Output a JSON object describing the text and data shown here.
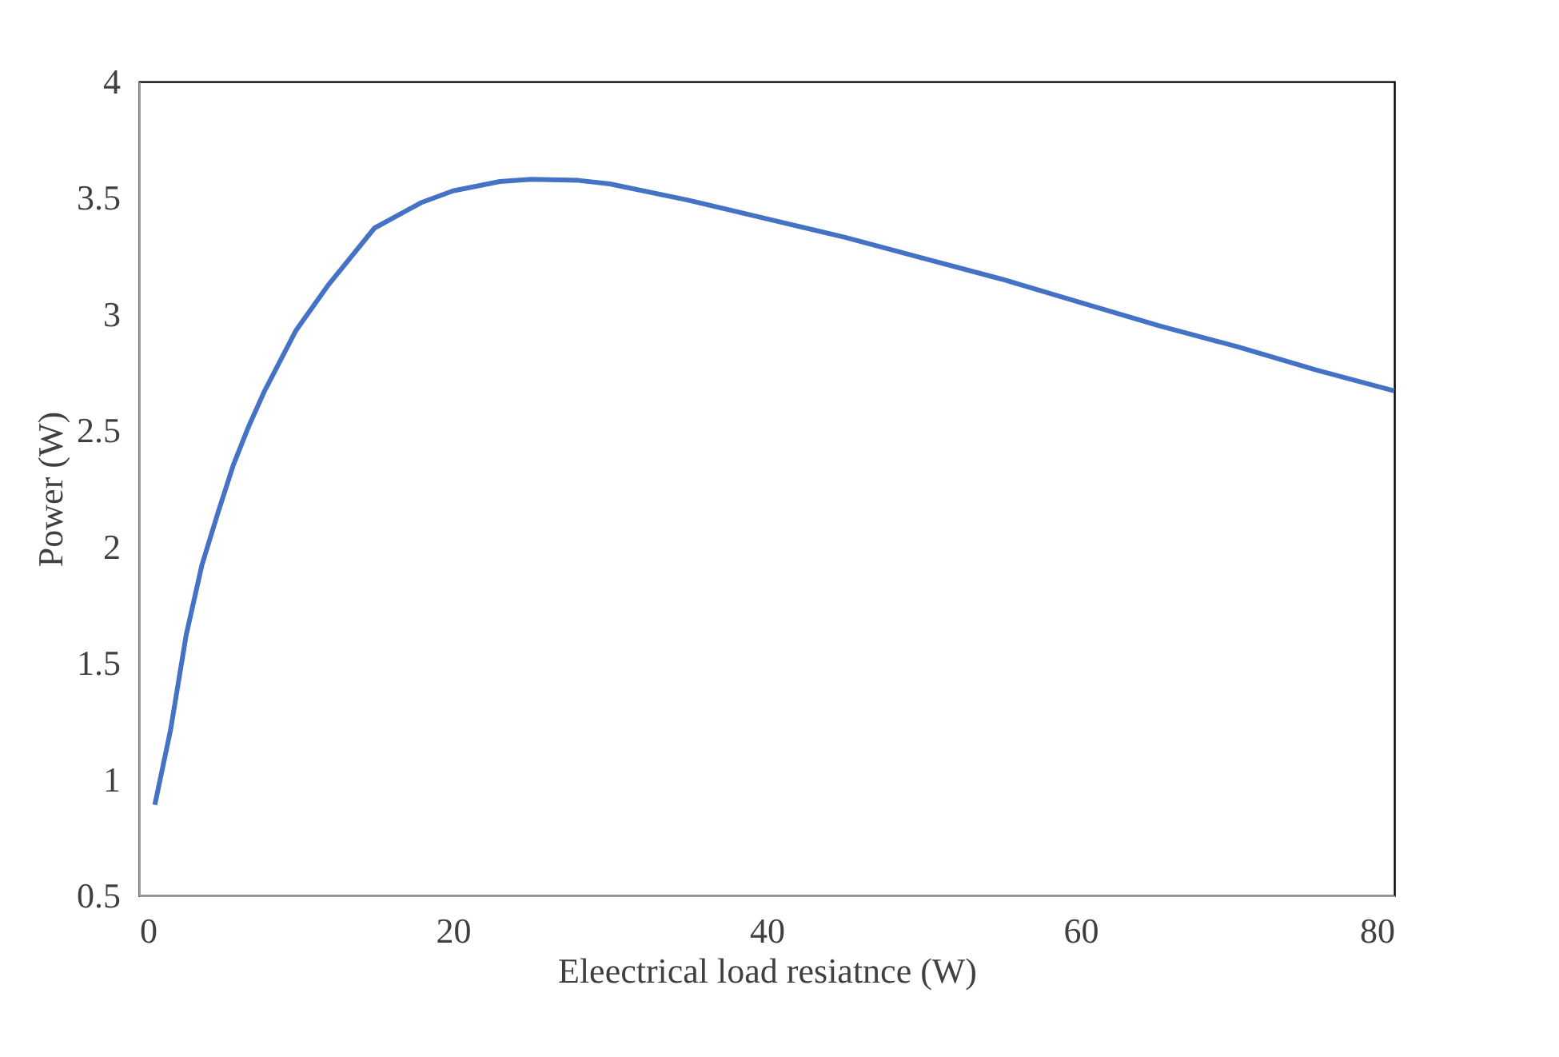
{
  "chart_data": {
    "type": "line",
    "xlabel": "Eleectrical load resiatnce (W)",
    "ylabel": "Power (W)",
    "x": [
      1,
      2,
      3,
      4,
      5,
      6,
      7,
      8,
      10,
      12,
      15,
      18,
      20,
      23,
      25,
      28,
      30,
      35,
      40,
      45,
      50,
      55,
      60,
      65,
      70,
      75,
      80
    ],
    "series": [
      {
        "color": "#4472c4",
        "values": [
          0.89,
          1.21,
          1.62,
          1.92,
          2.14,
          2.35,
          2.52,
          2.67,
          2.93,
          3.12,
          3.37,
          3.48,
          3.53,
          3.57,
          3.58,
          3.575,
          3.56,
          3.49,
          3.41,
          3.33,
          3.24,
          3.15,
          3.05,
          2.95,
          2.86,
          2.76,
          2.67
        ]
      }
    ],
    "xlim": [
      0,
      80
    ],
    "xticks": [
      0,
      20,
      40,
      60,
      80
    ],
    "ylim": [
      0.5,
      4
    ],
    "yticks": [
      0.5,
      1,
      1.5,
      2,
      2.5,
      3,
      3.5,
      4
    ],
    "grid": false,
    "legend": false,
    "marker": "none",
    "line_style": "solid"
  }
}
